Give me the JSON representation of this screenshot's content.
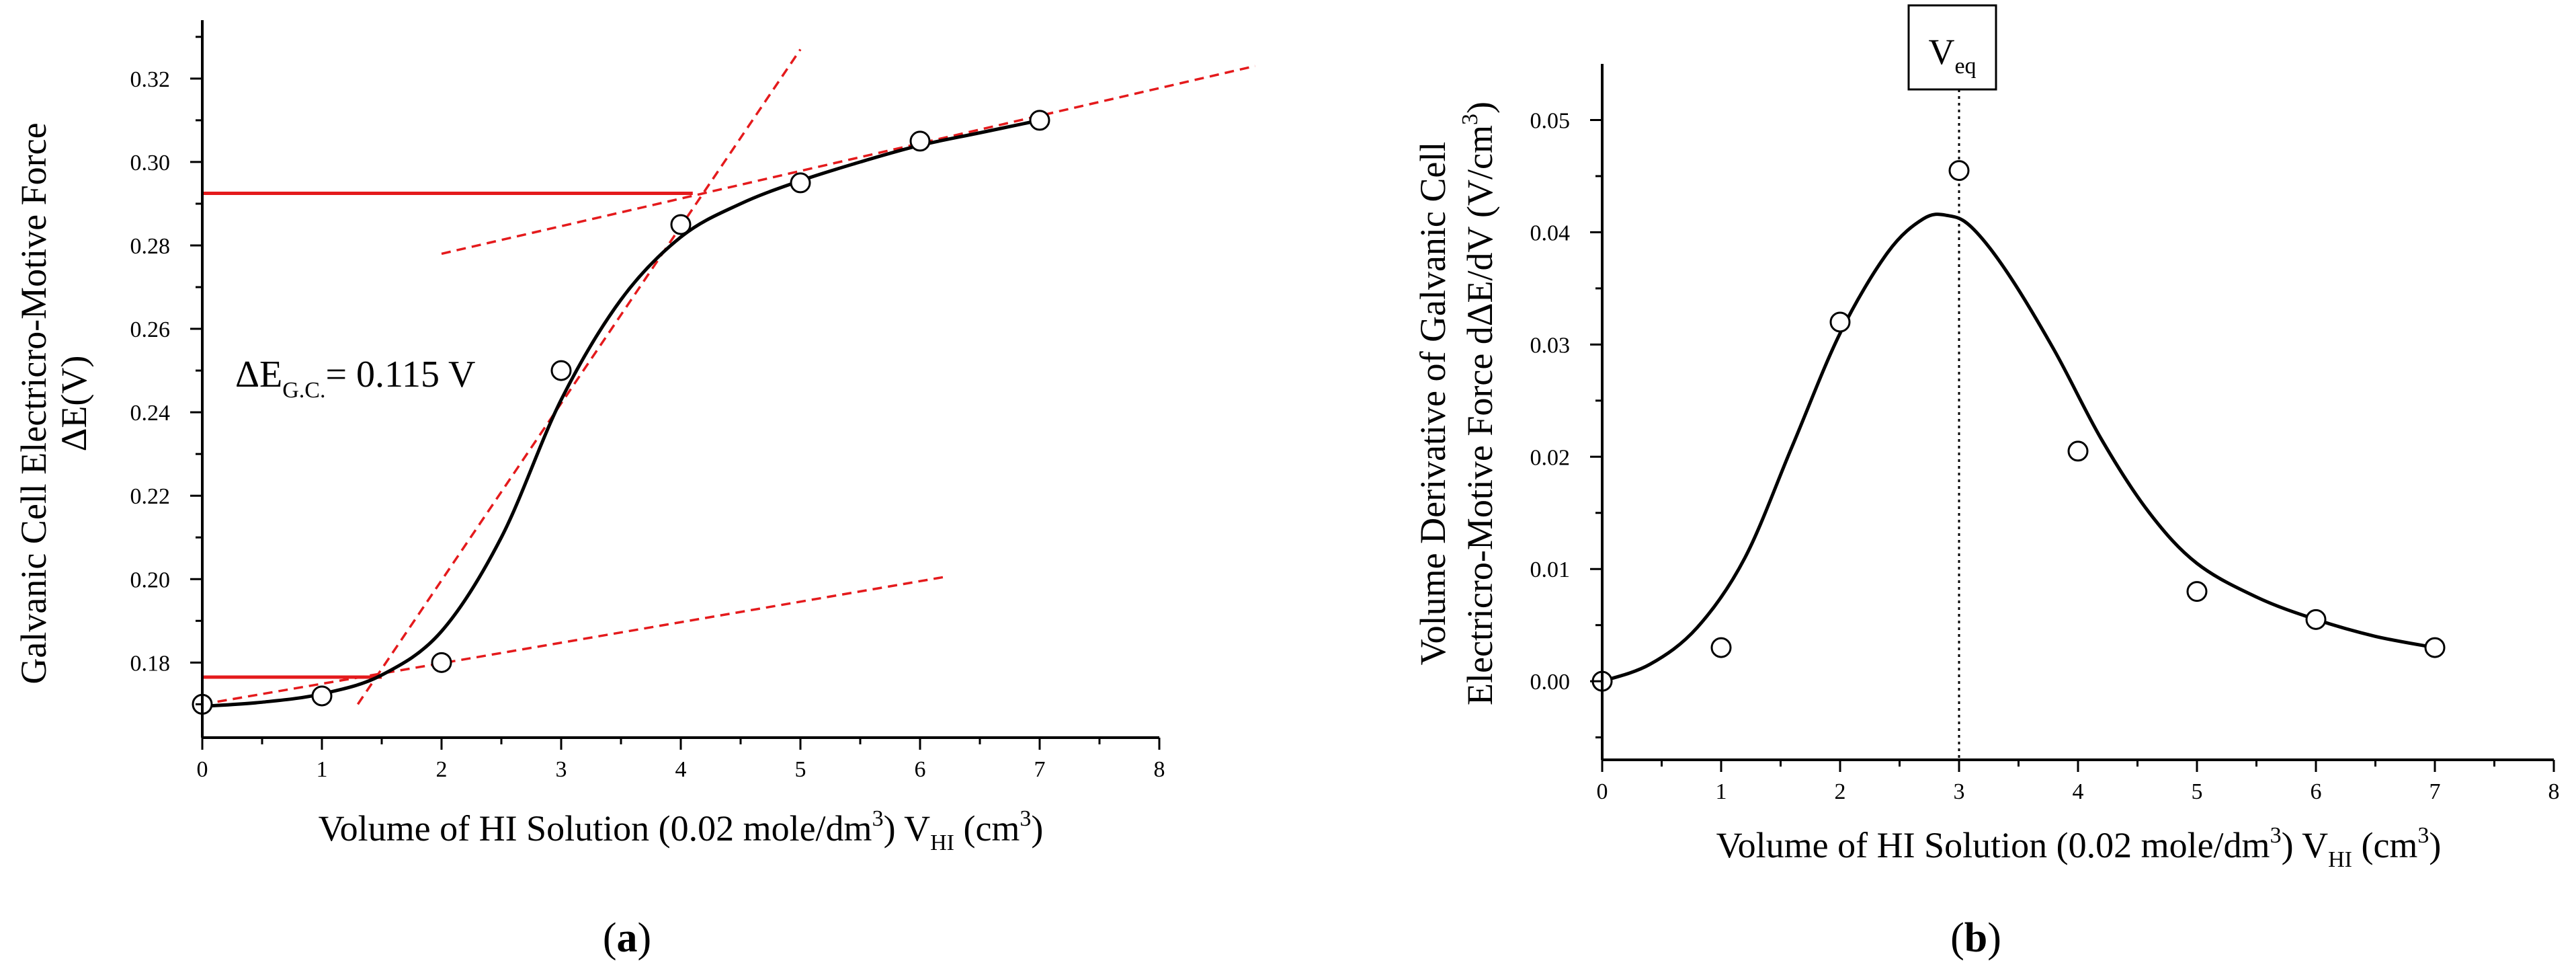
{
  "chart_data": [
    {
      "type": "scatter",
      "panel_label": "a",
      "xlabel": {
        "main": "Volume of  HI Solution (0.02 mole/dm",
        "sup1": "3",
        "mid": ")  V",
        "sub": "HI",
        "unit_open": " (cm",
        "sup2": "3",
        "close": ")"
      },
      "ylabel": {
        "line1": "Galvanic Cell Electricro-Motive Force",
        "line2": "ΔE(V)"
      },
      "xlim": [
        0,
        8
      ],
      "ylim": [
        0.162,
        0.334
      ],
      "x_ticks": [
        0,
        1,
        2,
        3,
        4,
        5,
        6,
        7,
        8
      ],
      "y_ticks": [
        0.18,
        0.2,
        0.22,
        0.24,
        0.26,
        0.28,
        0.3,
        0.32
      ],
      "y_tick_labels": [
        "0.18",
        "0.20",
        "0.22",
        "0.24",
        "0.26",
        "0.28",
        "0.30",
        "0.32"
      ],
      "points": {
        "x": [
          0,
          1,
          2,
          3,
          4,
          5,
          6,
          7
        ],
        "y": [
          0.17,
          0.172,
          0.18,
          0.25,
          0.285,
          0.295,
          0.305,
          0.31
        ]
      },
      "fit_curve": {
        "x": [
          0,
          0.5,
          1,
          1.5,
          2,
          2.5,
          3,
          3.5,
          4,
          4.5,
          5,
          5.5,
          6,
          6.5,
          7
        ],
        "y": [
          0.1695,
          0.1705,
          0.1725,
          0.177,
          0.1875,
          0.21,
          0.243,
          0.267,
          0.282,
          0.29,
          0.2955,
          0.3,
          0.304,
          0.307,
          0.31
        ]
      },
      "tangent_lines": [
        {
          "x": [
            0,
            6.2
          ],
          "y": [
            0.17,
            0.2005
          ]
        },
        {
          "x": [
            1.3,
            5.0
          ],
          "y": [
            0.17,
            0.327
          ]
        },
        {
          "x": [
            2.0,
            8.8
          ],
          "y": [
            0.278,
            0.323
          ]
        }
      ],
      "level_lines": [
        {
          "y": 0.2925,
          "x_end": 4.1
        },
        {
          "y": 0.1765,
          "x_end": 1.5
        }
      ],
      "annotation": {
        "delta": "ΔE",
        "sub": "G.C.",
        "value": "= 0.115 V",
        "x": 0.3,
        "y": 0.253
      }
    },
    {
      "type": "scatter",
      "panel_label": "b",
      "xlabel": {
        "main": "Volume of  HI Solution (0.02 mole/dm",
        "sup1": "3",
        "mid": ")  V",
        "sub": "HI",
        "unit_open": " (cm",
        "sup2": "3",
        "close": ")"
      },
      "ylabel": {
        "line1": "Volume Derivative of Galvanic Cell",
        "line2a": "Electricro-Motive Force  dΔE/dV (V/cm",
        "line2sup": "3",
        "line2b": ")"
      },
      "xlim": [
        0,
        8
      ],
      "ylim": [
        -0.007,
        0.055
      ],
      "x_ticks": [
        0,
        1,
        2,
        3,
        4,
        5,
        6,
        7,
        8
      ],
      "y_ticks": [
        0.0,
        0.01,
        0.02,
        0.03,
        0.04,
        0.05
      ],
      "y_tick_labels": [
        "0.00",
        "0.01",
        "0.02",
        "0.03",
        "0.04",
        "0.05"
      ],
      "points": {
        "x": [
          0,
          1,
          2,
          3,
          4,
          5,
          6,
          7
        ],
        "y": [
          0.0,
          0.003,
          0.032,
          0.0455,
          0.0205,
          0.008,
          0.0055,
          0.003
        ]
      },
      "fit_curve": {
        "x": [
          0,
          0.4,
          0.8,
          1.2,
          1.6,
          2.0,
          2.4,
          2.7,
          2.9,
          3.1,
          3.4,
          3.8,
          4.2,
          4.6,
          5.0,
          5.5,
          6.0,
          6.5,
          7.0
        ],
        "y": [
          0.0,
          0.0015,
          0.0048,
          0.011,
          0.021,
          0.031,
          0.0382,
          0.0412,
          0.0415,
          0.0405,
          0.0365,
          0.0295,
          0.0215,
          0.015,
          0.0105,
          0.0075,
          0.0055,
          0.004,
          0.003
        ]
      },
      "equivalence_line": {
        "x": 3,
        "label": "V",
        "label_sub": "eq"
      }
    }
  ]
}
